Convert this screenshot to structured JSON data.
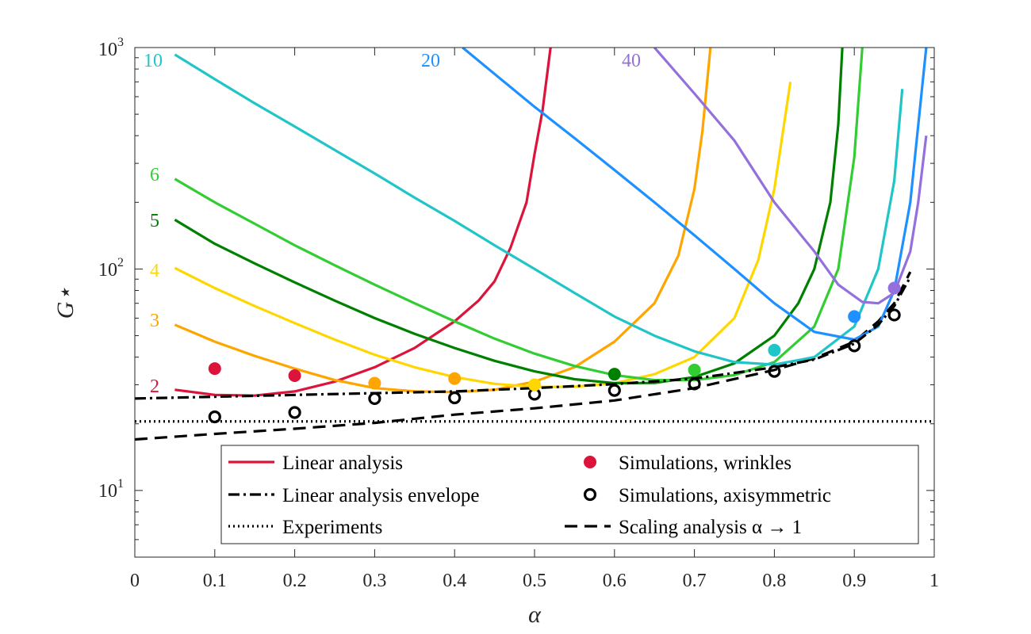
{
  "chart_data": {
    "type": "line",
    "title": "",
    "xlabel": "α",
    "ylabel": "G⋆",
    "xlim": [
      0,
      1
    ],
    "ylim": [
      5,
      1000
    ],
    "yscale": "log",
    "xticks": [
      "0",
      "0.1",
      "0.2",
      "0.3",
      "0.4",
      "0.5",
      "0.6",
      "0.7",
      "0.8",
      "0.9",
      "1"
    ],
    "yticks": [
      {
        "base": "10",
        "exp": "1"
      },
      {
        "base": "10",
        "exp": "2"
      },
      {
        "base": "10",
        "exp": "3"
      }
    ],
    "mode_curves": [
      {
        "n": "2",
        "color": "#dc143c",
        "points": [
          [
            0.05,
            28.5
          ],
          [
            0.1,
            27
          ],
          [
            0.15,
            26.8
          ],
          [
            0.2,
            28
          ],
          [
            0.25,
            31
          ],
          [
            0.3,
            36
          ],
          [
            0.35,
            44
          ],
          [
            0.4,
            58
          ],
          [
            0.43,
            72
          ],
          [
            0.45,
            88
          ],
          [
            0.47,
            125
          ],
          [
            0.49,
            200
          ],
          [
            0.5,
            330
          ],
          [
            0.51,
            520
          ],
          [
            0.52,
            1000
          ]
        ]
      },
      {
        "n": "3",
        "color": "#ffa500",
        "points": [
          [
            0.05,
            56
          ],
          [
            0.1,
            47
          ],
          [
            0.15,
            40.5
          ],
          [
            0.2,
            35.5
          ],
          [
            0.25,
            31.5
          ],
          [
            0.3,
            29
          ],
          [
            0.35,
            28
          ],
          [
            0.4,
            27.8
          ],
          [
            0.45,
            28.5
          ],
          [
            0.5,
            31
          ],
          [
            0.55,
            36
          ],
          [
            0.6,
            47
          ],
          [
            0.65,
            70
          ],
          [
            0.68,
            115
          ],
          [
            0.7,
            230
          ],
          [
            0.71,
            420
          ],
          [
            0.72,
            1000
          ]
        ]
      },
      {
        "n": "4",
        "color": "#ffd700",
        "points": [
          [
            0.05,
            101
          ],
          [
            0.1,
            82
          ],
          [
            0.15,
            68
          ],
          [
            0.2,
            57
          ],
          [
            0.25,
            48
          ],
          [
            0.3,
            41
          ],
          [
            0.35,
            36
          ],
          [
            0.4,
            32.5
          ],
          [
            0.45,
            30.3
          ],
          [
            0.5,
            29.3
          ],
          [
            0.55,
            29.4
          ],
          [
            0.6,
            30.5
          ],
          [
            0.65,
            33.5
          ],
          [
            0.7,
            40
          ],
          [
            0.75,
            60
          ],
          [
            0.78,
            110
          ],
          [
            0.8,
            230
          ],
          [
            0.82,
            700
          ]
        ]
      },
      {
        "n": "5",
        "color": "#008000",
        "points": [
          [
            0.05,
            167
          ],
          [
            0.1,
            130
          ],
          [
            0.15,
            106
          ],
          [
            0.2,
            87
          ],
          [
            0.25,
            72
          ],
          [
            0.3,
            60
          ],
          [
            0.35,
            51
          ],
          [
            0.4,
            44
          ],
          [
            0.45,
            38.5
          ],
          [
            0.5,
            34.5
          ],
          [
            0.55,
            31.8
          ],
          [
            0.6,
            30.5
          ],
          [
            0.65,
            30.6
          ],
          [
            0.7,
            32.5
          ],
          [
            0.75,
            37.5
          ],
          [
            0.8,
            50
          ],
          [
            0.83,
            70
          ],
          [
            0.85,
            100
          ],
          [
            0.87,
            200
          ],
          [
            0.88,
            450
          ],
          [
            0.885,
            1000
          ]
        ]
      },
      {
        "n": "6",
        "color": "#32cd32",
        "points": [
          [
            0.05,
            255
          ],
          [
            0.1,
            200
          ],
          [
            0.15,
            160
          ],
          [
            0.2,
            128
          ],
          [
            0.25,
            104
          ],
          [
            0.3,
            85
          ],
          [
            0.35,
            70
          ],
          [
            0.4,
            58
          ],
          [
            0.45,
            48.5
          ],
          [
            0.5,
            41.5
          ],
          [
            0.55,
            36.5
          ],
          [
            0.6,
            33.2
          ],
          [
            0.65,
            31.5
          ],
          [
            0.7,
            31.5
          ],
          [
            0.75,
            33.2
          ],
          [
            0.8,
            38
          ],
          [
            0.85,
            55
          ],
          [
            0.88,
            100
          ],
          [
            0.9,
            320
          ],
          [
            0.91,
            1000
          ]
        ]
      },
      {
        "n": "10",
        "color": "#20c5c8",
        "points": [
          [
            0.05,
            930
          ],
          [
            0.1,
            720
          ],
          [
            0.15,
            560
          ],
          [
            0.2,
            440
          ],
          [
            0.25,
            345
          ],
          [
            0.3,
            270
          ],
          [
            0.35,
            210
          ],
          [
            0.4,
            165
          ],
          [
            0.45,
            128
          ],
          [
            0.5,
            100
          ],
          [
            0.55,
            78
          ],
          [
            0.6,
            61
          ],
          [
            0.65,
            50
          ],
          [
            0.7,
            42.5
          ],
          [
            0.75,
            38
          ],
          [
            0.8,
            37
          ],
          [
            0.85,
            40
          ],
          [
            0.9,
            55
          ],
          [
            0.93,
            100
          ],
          [
            0.95,
            250
          ],
          [
            0.96,
            650
          ]
        ]
      },
      {
        "n": "20",
        "color": "#1e90ff",
        "points": [
          [
            0.41,
            1000
          ],
          [
            0.45,
            760
          ],
          [
            0.5,
            540
          ],
          [
            0.55,
            390
          ],
          [
            0.6,
            280
          ],
          [
            0.65,
            200
          ],
          [
            0.7,
            142
          ],
          [
            0.75,
            100
          ],
          [
            0.8,
            70
          ],
          [
            0.85,
            52
          ],
          [
            0.9,
            48
          ],
          [
            0.93,
            55
          ],
          [
            0.95,
            80
          ],
          [
            0.97,
            200
          ],
          [
            0.99,
            1000
          ]
        ]
      },
      {
        "n": "40",
        "color": "#9370db",
        "points": [
          [
            0.65,
            1000
          ],
          [
            0.7,
            620
          ],
          [
            0.75,
            380
          ],
          [
            0.8,
            200
          ],
          [
            0.85,
            120
          ],
          [
            0.88,
            85
          ],
          [
            0.91,
            71
          ],
          [
            0.93,
            70
          ],
          [
            0.95,
            78
          ],
          [
            0.97,
            120
          ],
          [
            0.98,
            200
          ],
          [
            0.99,
            400
          ]
        ]
      }
    ],
    "curve_labels": [
      {
        "text": "2",
        "color": "#dc143c"
      },
      {
        "text": "3",
        "color": "#ffa500"
      },
      {
        "text": "4",
        "color": "#ffd700"
      },
      {
        "text": "5",
        "color": "#008000"
      },
      {
        "text": "6",
        "color": "#32cd32"
      },
      {
        "text": "10",
        "color": "#20c5c8"
      },
      {
        "text": "20",
        "color": "#1e90ff"
      },
      {
        "text": "40",
        "color": "#9370db"
      }
    ],
    "envelope": [
      [
        0,
        26
      ],
      [
        0.1,
        26.5
      ],
      [
        0.2,
        27
      ],
      [
        0.3,
        27.5
      ],
      [
        0.4,
        28
      ],
      [
        0.5,
        29
      ],
      [
        0.6,
        30.2
      ],
      [
        0.7,
        32
      ],
      [
        0.8,
        36
      ],
      [
        0.85,
        39
      ],
      [
        0.9,
        46
      ],
      [
        0.93,
        56
      ],
      [
        0.95,
        68
      ],
      [
        0.97,
        92
      ]
    ],
    "experiments_value": 20.5,
    "scaling": [
      [
        0,
        17
      ],
      [
        0.1,
        18
      ],
      [
        0.2,
        19
      ],
      [
        0.3,
        20.2
      ],
      [
        0.4,
        22
      ],
      [
        0.5,
        23.5
      ],
      [
        0.6,
        25.5
      ],
      [
        0.7,
        29
      ],
      [
        0.8,
        35
      ],
      [
        0.85,
        39.5
      ],
      [
        0.9,
        47
      ],
      [
        0.93,
        58
      ],
      [
        0.95,
        70
      ],
      [
        0.97,
        97
      ]
    ],
    "wrinkle_points": [
      {
        "x": 0.1,
        "y": 35.5,
        "color": "#dc143c"
      },
      {
        "x": 0.2,
        "y": 33,
        "color": "#dc143c"
      },
      {
        "x": 0.3,
        "y": 30.5,
        "color": "#ffa500"
      },
      {
        "x": 0.4,
        "y": 32,
        "color": "#ffa500"
      },
      {
        "x": 0.5,
        "y": 30,
        "color": "#ffd700"
      },
      {
        "x": 0.6,
        "y": 33.5,
        "color": "#008000"
      },
      {
        "x": 0.7,
        "y": 35,
        "color": "#32cd32"
      },
      {
        "x": 0.8,
        "y": 43,
        "color": "#20c5c8"
      },
      {
        "x": 0.9,
        "y": 61,
        "color": "#1e90ff"
      },
      {
        "x": 0.95,
        "y": 82,
        "color": "#9370db"
      }
    ],
    "axisym_points": [
      {
        "x": 0.1,
        "y": 21.5
      },
      {
        "x": 0.2,
        "y": 22.5
      },
      {
        "x": 0.3,
        "y": 26
      },
      {
        "x": 0.4,
        "y": 26.2
      },
      {
        "x": 0.5,
        "y": 27.2
      },
      {
        "x": 0.6,
        "y": 28.3
      },
      {
        "x": 0.7,
        "y": 30.3
      },
      {
        "x": 0.8,
        "y": 34.5
      },
      {
        "x": 0.9,
        "y": 45
      },
      {
        "x": 0.95,
        "y": 62
      }
    ],
    "legend": {
      "position": "bottom-center",
      "entries": [
        {
          "label": "Linear analysis",
          "style": "solid-line",
          "color": "#dc143c"
        },
        {
          "label": "Linear analysis envelope",
          "style": "dashdot-line",
          "color": "#000000"
        },
        {
          "label": "Experiments",
          "style": "dotted-line",
          "color": "#000000"
        },
        {
          "label": "Simulations, wrinkles",
          "style": "filled-marker",
          "color": "#dc143c"
        },
        {
          "label": "Simulations, axisymmetric",
          "style": "open-marker",
          "color": "#000000"
        },
        {
          "label": "Scaling analysis α → 1",
          "style": "dashed-line",
          "color": "#000000"
        }
      ]
    }
  }
}
